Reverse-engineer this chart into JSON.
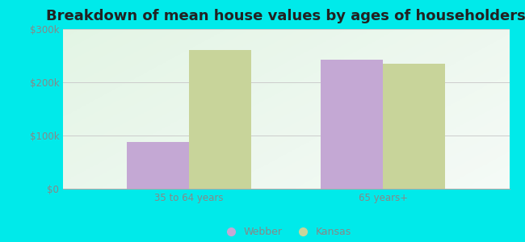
{
  "title": "Breakdown of mean house values by ages of householders",
  "categories": [
    "35 to 64 years",
    "65 years+"
  ],
  "webber_values": [
    88000,
    242000
  ],
  "kansas_values": [
    260000,
    235000
  ],
  "webber_color": "#c4a8d4",
  "kansas_color": "#c8d49a",
  "background_color": "#00eaea",
  "plot_bg_gradient_top_left": "#d0ecd8",
  "plot_bg_gradient_bottom_right": "#f0faf4",
  "ylim": [
    0,
    300000
  ],
  "yticks": [
    0,
    100000,
    200000,
    300000
  ],
  "ytick_labels": [
    "$0",
    "$100k",
    "$200k",
    "$300k"
  ],
  "bar_width": 0.32,
  "legend_webber": "Webber",
  "legend_kansas": "Kansas",
  "title_fontsize": 13,
  "tick_fontsize": 8.5,
  "legend_fontsize": 9,
  "tick_color": "#888888"
}
